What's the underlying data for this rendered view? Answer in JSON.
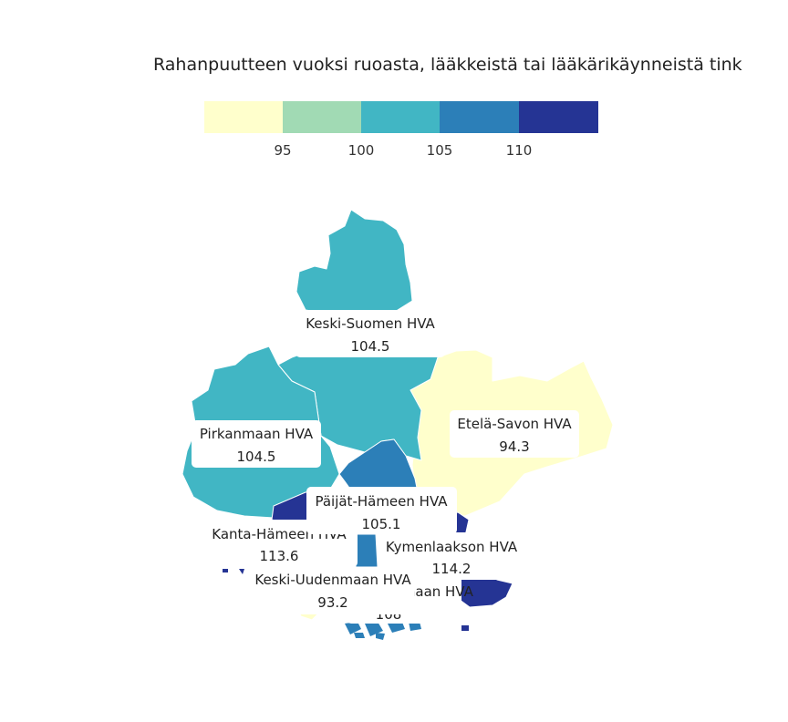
{
  "title": "Rahanpuutteen vuoksi ruoasta, lääkkeistä tai lääkärikäynneistä tink",
  "legend": {
    "bins": [
      {
        "color": "#ffffcc"
      },
      {
        "color": "#a1dab4"
      },
      {
        "color": "#41b6c4"
      },
      {
        "color": "#2c7fb8"
      },
      {
        "color": "#253494"
      }
    ],
    "ticks": [
      "95",
      "100",
      "105",
      "110"
    ]
  },
  "regions": [
    {
      "name": "Keski-Suomen HVA",
      "value": "104.5",
      "color": "#41b6c4"
    },
    {
      "name": "Pirkanmaan HVA",
      "value": "104.5",
      "color": "#41b6c4"
    },
    {
      "name": "Etelä-Savon HVA",
      "value": "94.3",
      "color": "#ffffcc"
    },
    {
      "name": "Päijät-Hämeen HVA",
      "value": "105.1",
      "color": "#2c7fb8"
    },
    {
      "name": "Kanta-Hämeen HVA",
      "value": "113.6",
      "color": "#253494"
    },
    {
      "name": "Kymenlaakson HVA",
      "value": "114.2",
      "color": "#253494"
    },
    {
      "name": "Keski-Uudenmaan HVA",
      "value": "93.2",
      "color": "#ffffcc"
    },
    {
      "name": "Itä-Uudenmaan HVA",
      "value": "108",
      "color": "#2c7fb8"
    }
  ]
}
